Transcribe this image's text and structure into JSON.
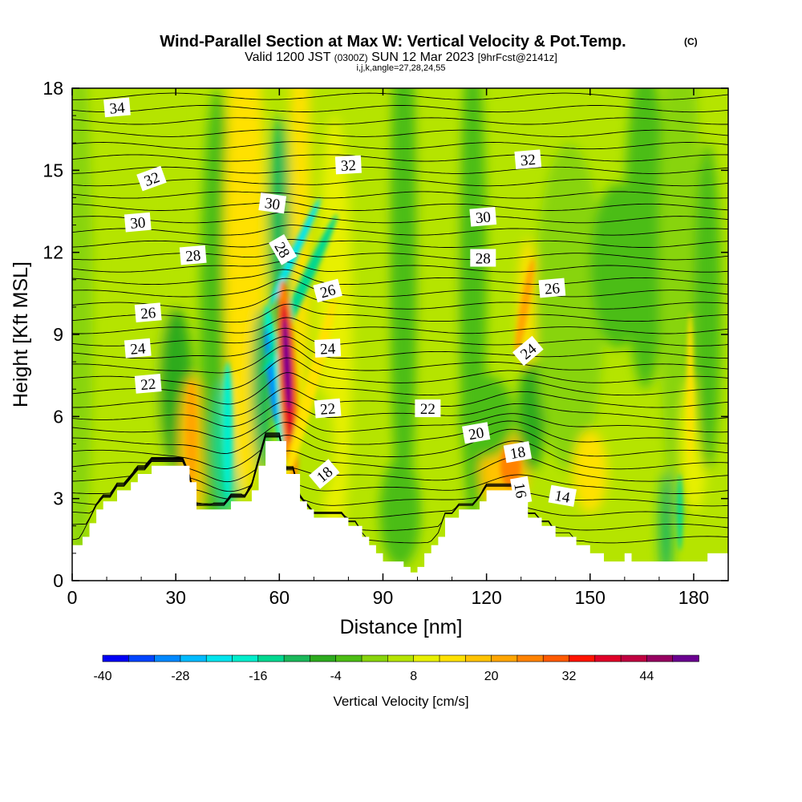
{
  "header": {
    "title": "Wind-Parallel Section at Max W: Vertical Velocity & Pot.Temp.",
    "copyright": "(C)",
    "valid_prefix": "Valid 1200 JST",
    "valid_utc": "(0300Z)",
    "valid_date": "SUN 12 Mar 2023",
    "forecast": "[9hrFcst@2141z]",
    "indices": "i,j,k,angle=27,28,24,55"
  },
  "colors": {
    "background": "#ffffff",
    "terrain": "#ffffff",
    "contour": "#000000"
  },
  "chart_data": {
    "type": "heatmap",
    "title": "Wind-Parallel Section at Max W: Vertical Velocity & Pot.Temp.",
    "xlabel": "Distance [nm]",
    "ylabel": "Height [Kft MSL]",
    "xlim": [
      0,
      190
    ],
    "ylim": [
      0,
      18
    ],
    "x_ticks": [
      "0",
      "30",
      "60",
      "90",
      "120",
      "150",
      "180"
    ],
    "y_ticks": [
      "0",
      "3",
      "6",
      "9",
      "12",
      "15",
      "18"
    ],
    "colorbar": {
      "label": "Vertical Velocity [cm/s]",
      "min": -40,
      "max": 52,
      "step": 4,
      "tick_labels": [
        "-40",
        "-28",
        "-16",
        "-4",
        "8",
        "20",
        "32",
        "44"
      ],
      "colors": [
        "#0000f5",
        "#0044ff",
        "#0088ff",
        "#00bbff",
        "#00e5ee",
        "#00eecc",
        "#00d890",
        "#1ab85a",
        "#2dab1e",
        "#4cbd14",
        "#88d40c",
        "#b5e400",
        "#e8f000",
        "#ffe100",
        "#ffc300",
        "#ffa500",
        "#ff8200",
        "#ff5a00",
        "#ff1400",
        "#e00028",
        "#c00040",
        "#960060",
        "#6a0090"
      ]
    },
    "terrain_profile": {
      "x": [
        0,
        1.5,
        3,
        5,
        7,
        9,
        11,
        13,
        15,
        17,
        19,
        21,
        23,
        25,
        27,
        30,
        32,
        34,
        36,
        38,
        40,
        42,
        44,
        46,
        48,
        50,
        52,
        54,
        56,
        58,
        60,
        62,
        64,
        66,
        68,
        70,
        72,
        74,
        76,
        78,
        80,
        82,
        84,
        86,
        88,
        90,
        92,
        94,
        96,
        98,
        100,
        102,
        104,
        106,
        108,
        110,
        112,
        114,
        116,
        118,
        120,
        122,
        124,
        126,
        128,
        130,
        132,
        134,
        136,
        138,
        140,
        142,
        144,
        146,
        148,
        150,
        152,
        154,
        156,
        158,
        160,
        162,
        164,
        166,
        168,
        170,
        172,
        174,
        176,
        178,
        180,
        182,
        184,
        186,
        188,
        190
      ],
      "z": [
        1.3,
        1.3,
        1.6,
        2.1,
        2.6,
        2.9,
        2.9,
        3.3,
        3.3,
        3.6,
        3.9,
        3.9,
        4.2,
        4.2,
        4.2,
        4.2,
        4.2,
        3.6,
        2.6,
        2.6,
        2.6,
        2.6,
        2.6,
        2.9,
        2.9,
        2.9,
        3.3,
        4.2,
        5.1,
        5.1,
        5.1,
        3.9,
        3.9,
        2.9,
        2.6,
        2.3,
        2.3,
        2.3,
        2.3,
        2.3,
        2.0,
        2.0,
        1.6,
        1.3,
        1.0,
        0.7,
        0.7,
        0.7,
        0.5,
        0.3,
        0.5,
        1.0,
        1.3,
        1.6,
        2.3,
        2.3,
        2.6,
        2.6,
        2.6,
        2.9,
        3.3,
        3.3,
        3.3,
        3.3,
        3.3,
        3.3,
        2.3,
        2.3,
        2.0,
        2.0,
        1.6,
        1.6,
        1.6,
        1.3,
        1.3,
        1.0,
        1.0,
        0.7,
        0.7,
        0.7,
        1.0,
        0.7,
        0.7,
        0.7,
        0.7,
        0.7,
        0.7,
        0.7,
        0.7,
        0.7,
        0.7,
        0.7,
        1.0,
        1.0,
        1.0,
        1.0
      ]
    },
    "contour_labels": [
      {
        "text": "34",
        "x": 13,
        "y": 17.3,
        "angle": -5
      },
      {
        "text": "32",
        "x": 23,
        "y": 14.7,
        "angle": -20
      },
      {
        "text": "32",
        "x": 80,
        "y": 15.2,
        "angle": -3
      },
      {
        "text": "32",
        "x": 132,
        "y": 15.4,
        "angle": -5
      },
      {
        "text": "30",
        "x": 19,
        "y": 13.1,
        "angle": -5
      },
      {
        "text": "30",
        "x": 58,
        "y": 13.8,
        "angle": 8
      },
      {
        "text": "30",
        "x": 119,
        "y": 13.3,
        "angle": -5
      },
      {
        "text": "28",
        "x": 35,
        "y": 11.9,
        "angle": -5
      },
      {
        "text": "28",
        "x": 61,
        "y": 12.1,
        "angle": 60
      },
      {
        "text": "28",
        "x": 119,
        "y": 11.8,
        "angle": 0
      },
      {
        "text": "26",
        "x": 22,
        "y": 9.8,
        "angle": -5
      },
      {
        "text": "26",
        "x": 74,
        "y": 10.6,
        "angle": -15
      },
      {
        "text": "26",
        "x": 139,
        "y": 10.7,
        "angle": -5
      },
      {
        "text": "24",
        "x": 19,
        "y": 8.5,
        "angle": -5
      },
      {
        "text": "24",
        "x": 74,
        "y": 8.5,
        "angle": -3
      },
      {
        "text": "24",
        "x": 132,
        "y": 8.4,
        "angle": -40
      },
      {
        "text": "22",
        "x": 22,
        "y": 7.2,
        "angle": -5
      },
      {
        "text": "22",
        "x": 74,
        "y": 6.3,
        "angle": -5
      },
      {
        "text": "22",
        "x": 103,
        "y": 6.3,
        "angle": 0
      },
      {
        "text": "20",
        "x": 117,
        "y": 5.4,
        "angle": -10
      },
      {
        "text": "18",
        "x": 73,
        "y": 3.9,
        "angle": -40
      },
      {
        "text": "18",
        "x": 129,
        "y": 4.7,
        "angle": -10
      },
      {
        "text": "16",
        "x": 130,
        "y": 3.3,
        "angle": 80
      },
      {
        "text": "14",
        "x": 142,
        "y": 3.1,
        "angle": 10
      }
    ]
  }
}
